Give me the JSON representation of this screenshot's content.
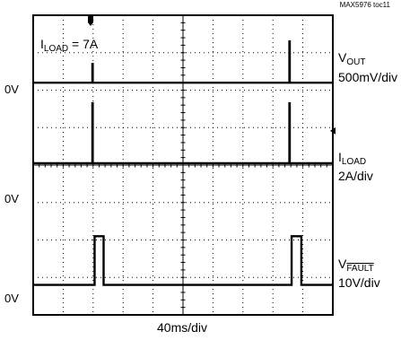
{
  "figure_id": "MAX5976 toc11",
  "annotation": {
    "prefix": "I",
    "subscript": "LOAD",
    "suffix": " = 7A"
  },
  "zero_label": "0V",
  "x_axis_label": "40ms/div",
  "channels": [
    {
      "symbol": "V",
      "subscript": "OUT",
      "overline": false,
      "scale": "500mV/div"
    },
    {
      "symbol": "I",
      "subscript": "LOAD",
      "overline": false,
      "scale": "2A/div"
    },
    {
      "symbol": "V",
      "subscript": "FAULT",
      "overline": true,
      "scale": "10V/div"
    }
  ],
  "chart_data": {
    "type": "line",
    "title": "",
    "xlabel": "40ms/div",
    "ylabel": "",
    "x_unit": "ms",
    "xlim": [
      0,
      400
    ],
    "grid": true,
    "divisions": {
      "x": 10,
      "y": 8
    },
    "series": [
      {
        "name": "VOUT",
        "scale": "500mV/div",
        "baseline_div": 1.8,
        "x": [
          0,
          79,
          79,
          79.5,
          79.5,
          342,
          342,
          342.5,
          342.5,
          400
        ],
        "y": [
          0,
          0,
          0.5,
          0.5,
          0,
          0,
          1.1,
          1.1,
          0,
          0
        ]
      },
      {
        "name": "ILOAD",
        "scale": "2A/div",
        "baseline_div": 3.95,
        "x": [
          0,
          79,
          79,
          79.5,
          79.5,
          342,
          342,
          342.5,
          342.5,
          400
        ],
        "y": [
          0,
          0,
          1.6,
          1.6,
          0,
          0,
          1.6,
          1.6,
          0,
          0
        ]
      },
      {
        "name": "VFAULT",
        "scale": "10V/div",
        "baseline_div": 7.2,
        "x": [
          0,
          82,
          82,
          94,
          94,
          345,
          345,
          358,
          358,
          400
        ],
        "y": [
          0,
          0,
          1.3,
          1.3,
          0,
          0,
          1.3,
          1.3,
          0,
          0
        ]
      }
    ]
  }
}
